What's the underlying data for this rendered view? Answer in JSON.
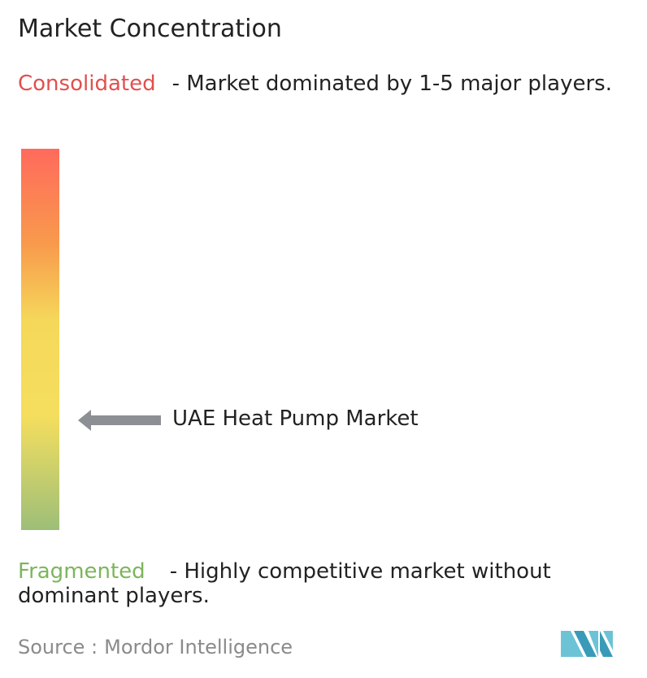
{
  "title": "Market Concentration",
  "consolidated": {
    "label": "Consolidated",
    "description": "- Market dominated by 1-5 major players."
  },
  "market_label": "UAE Heat Pump Market",
  "fragmented": {
    "label": "Fragmented",
    "description": "- Highly competitive market without dominant players."
  },
  "source": {
    "label": "Source :",
    "name": "Mordor Intelligence"
  }
}
